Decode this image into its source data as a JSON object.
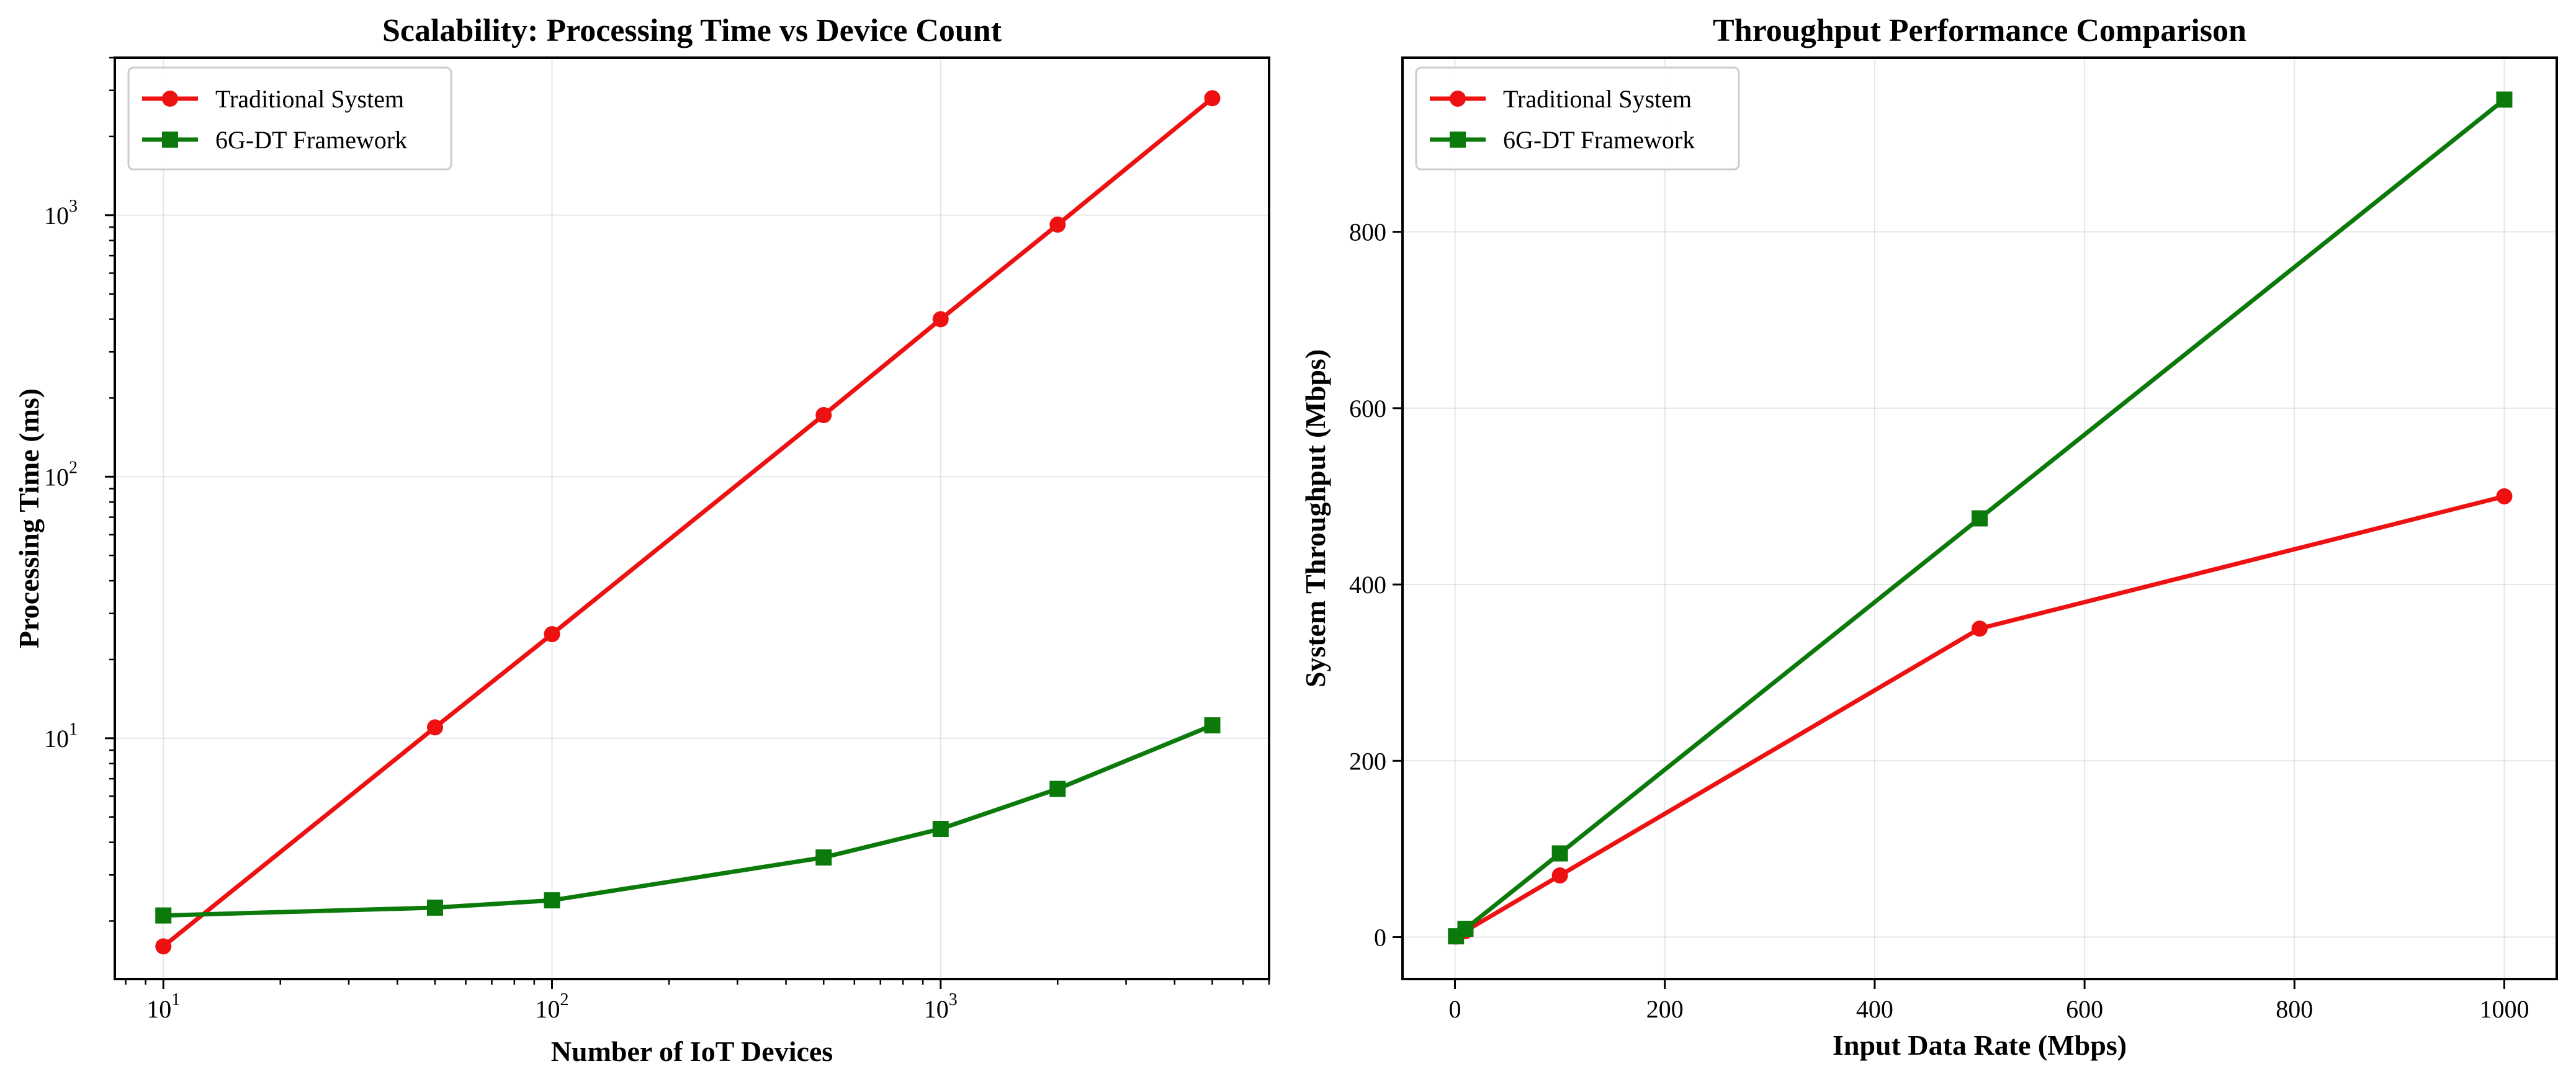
{
  "chart_data": [
    {
      "type": "line",
      "title": "Scalability: Processing Time vs Device Count",
      "xlabel": "Number of IoT Devices",
      "ylabel": "Processing Time (ms)",
      "xscale": "log",
      "yscale": "log",
      "xlim": [
        7.5,
        7000
      ],
      "ylim": [
        1.2,
        4000
      ],
      "xticks": [
        {
          "value": 10,
          "base": "10",
          "exp": "1"
        },
        {
          "value": 100,
          "base": "10",
          "exp": "2"
        },
        {
          "value": 1000,
          "base": "10",
          "exp": "3"
        }
      ],
      "yticks": [
        {
          "value": 10,
          "base": "10",
          "exp": "1"
        },
        {
          "value": 100,
          "base": "10",
          "exp": "2"
        },
        {
          "value": 1000,
          "base": "10",
          "exp": "3"
        }
      ],
      "grid": true,
      "legend": "top-left",
      "x": [
        10,
        50,
        100,
        500,
        1000,
        2000,
        5000
      ],
      "series": [
        {
          "name": "Traditional System",
          "color": "#ee1111",
          "marker": "circle",
          "values": [
            1.6,
            11,
            25,
            172,
            400,
            920,
            2800
          ]
        },
        {
          "name": "6G-DT Framework",
          "color": "#0b7a0b",
          "marker": "square",
          "values": [
            2.1,
            2.25,
            2.4,
            3.5,
            4.5,
            6.4,
            11.2
          ]
        }
      ]
    },
    {
      "type": "line",
      "title": "Throughput Performance Comparison",
      "xlabel": "Input Data Rate (Mbps)",
      "ylabel": "System Throughput (Mbps)",
      "xscale": "linear",
      "yscale": "linear",
      "xlim": [
        -50,
        1050
      ],
      "ylim": [
        -47.5,
        997.5
      ],
      "xticks": [
        {
          "value": 0,
          "label": "0"
        },
        {
          "value": 200,
          "label": "200"
        },
        {
          "value": 400,
          "label": "400"
        },
        {
          "value": 600,
          "label": "600"
        },
        {
          "value": 800,
          "label": "800"
        },
        {
          "value": 1000,
          "label": "1000"
        }
      ],
      "yticks": [
        {
          "value": 0,
          "label": "0"
        },
        {
          "value": 200,
          "label": "200"
        },
        {
          "value": 400,
          "label": "400"
        },
        {
          "value": 600,
          "label": "600"
        },
        {
          "value": 800,
          "label": "800"
        }
      ],
      "grid": true,
      "legend": "top-left",
      "x": [
        1,
        10,
        100,
        500,
        1000
      ],
      "series": [
        {
          "name": "Traditional System",
          "color": "#ee1111",
          "marker": "circle",
          "values": [
            0.7,
            7,
            70,
            350,
            500
          ]
        },
        {
          "name": "6G-DT Framework",
          "color": "#0b7a0b",
          "marker": "square",
          "values": [
            0.95,
            9.5,
            95,
            475,
            950
          ]
        }
      ]
    }
  ]
}
